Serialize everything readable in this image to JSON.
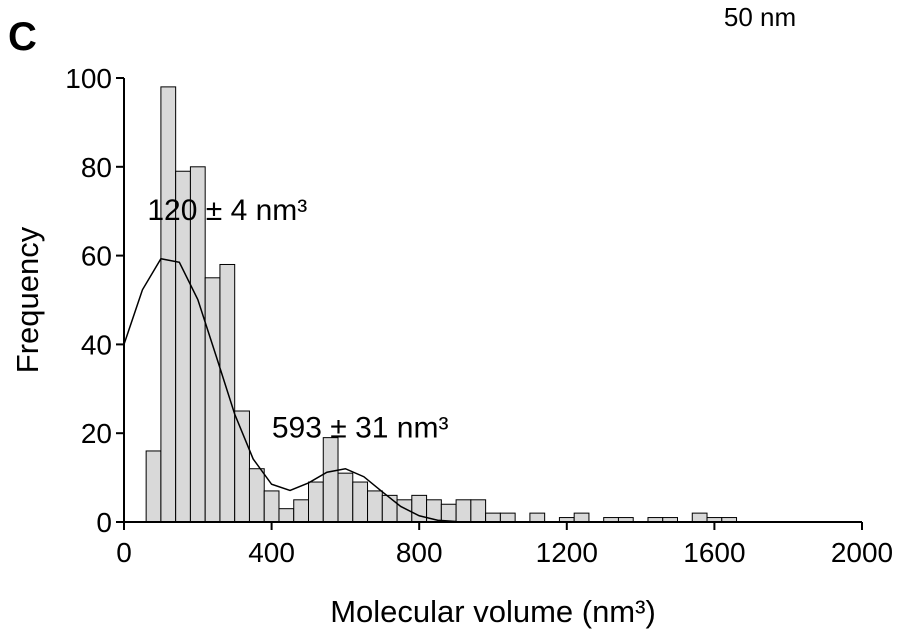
{
  "chart_data": {
    "type": "histogram",
    "panel_label": "C",
    "corner_text": "50 nm",
    "xlabel": "Molecular volume (nm³)",
    "ylabel": "Frequency",
    "bins": [
      60,
      100,
      140,
      180,
      220,
      260,
      300,
      340,
      380,
      420,
      460,
      500,
      540,
      580,
      620,
      660,
      700,
      740,
      780,
      820,
      860,
      900,
      940,
      980,
      1020,
      1060,
      1100,
      1140,
      1180,
      1220,
      1260,
      1300,
      1340,
      1380,
      1420,
      1460,
      1500,
      1540,
      1580,
      1620,
      1660
    ],
    "counts": [
      16,
      98,
      79,
      80,
      55,
      58,
      25,
      12,
      7,
      3,
      5,
      9,
      19,
      11,
      9,
      7,
      6,
      5,
      6,
      5,
      4,
      5,
      5,
      2,
      2,
      0,
      2,
      0,
      1,
      2,
      0,
      1,
      1,
      0,
      1,
      1,
      0,
      2,
      1,
      1
    ],
    "color": "#d9d9d9",
    "fit": {
      "x": [
        0,
        50,
        100,
        150,
        200,
        250,
        300,
        350,
        400,
        450,
        500,
        550,
        600,
        650,
        700,
        750,
        800,
        850,
        900
      ],
      "y": [
        40,
        52.3,
        59.3,
        58.5,
        50.1,
        37.3,
        24.3,
        14.2,
        8.5,
        7.1,
        8.8,
        11.2,
        12,
        10.2,
        6.8,
        3.5,
        1.4,
        0.4,
        0.1
      ]
    },
    "annotations": [
      {
        "text": "120 ± 4 nm³",
        "x": 280,
        "y": 68
      },
      {
        "text": "593 ± 31 nm³",
        "x": 640,
        "y": 19
      }
    ],
    "xlim": [
      0,
      2000
    ],
    "ylim": [
      0,
      100
    ],
    "xticks": [
      0,
      400,
      800,
      1200,
      1600,
      2000
    ],
    "yticks": [
      0,
      20,
      40,
      60,
      80,
      100
    ]
  }
}
